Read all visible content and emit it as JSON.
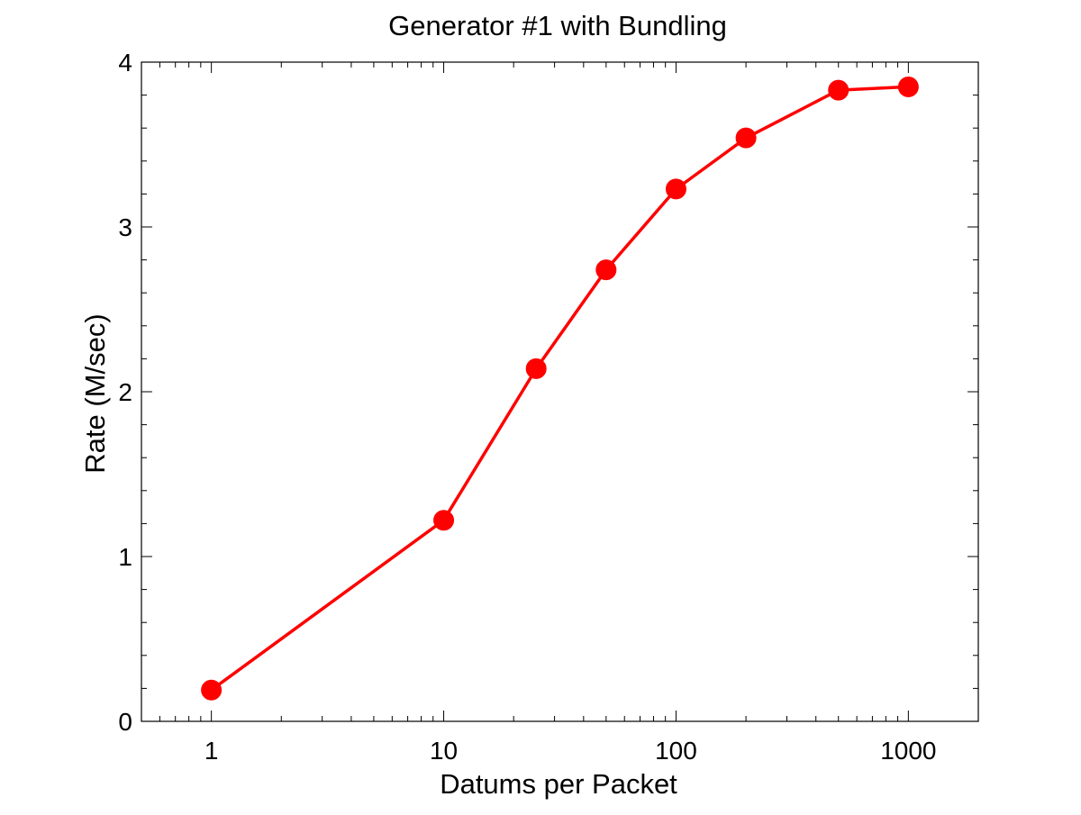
{
  "chart_data": {
    "type": "line",
    "title": "Generator #1 with Bundling",
    "xlabel": "Datums per Packet",
    "ylabel": "Rate (M/sec)",
    "xscale": "log",
    "xlim": [
      0.5,
      2000
    ],
    "ylim": [
      0,
      4
    ],
    "x_ticks": [
      1,
      10,
      100,
      1000
    ],
    "x_tick_labels": [
      "1",
      "10",
      "100",
      "1000"
    ],
    "y_ticks": [
      0,
      1,
      2,
      3,
      4
    ],
    "y_tick_labels": [
      "0",
      "1",
      "2",
      "3",
      "4"
    ],
    "grid": false,
    "series": [
      {
        "color": "#ff0000",
        "marker": "circle",
        "x": [
          1,
          10,
          25,
          50,
          100,
          200,
          500,
          1000
        ],
        "y": [
          0.19,
          1.22,
          2.14,
          2.74,
          3.23,
          3.54,
          3.83,
          3.85
        ]
      }
    ]
  }
}
